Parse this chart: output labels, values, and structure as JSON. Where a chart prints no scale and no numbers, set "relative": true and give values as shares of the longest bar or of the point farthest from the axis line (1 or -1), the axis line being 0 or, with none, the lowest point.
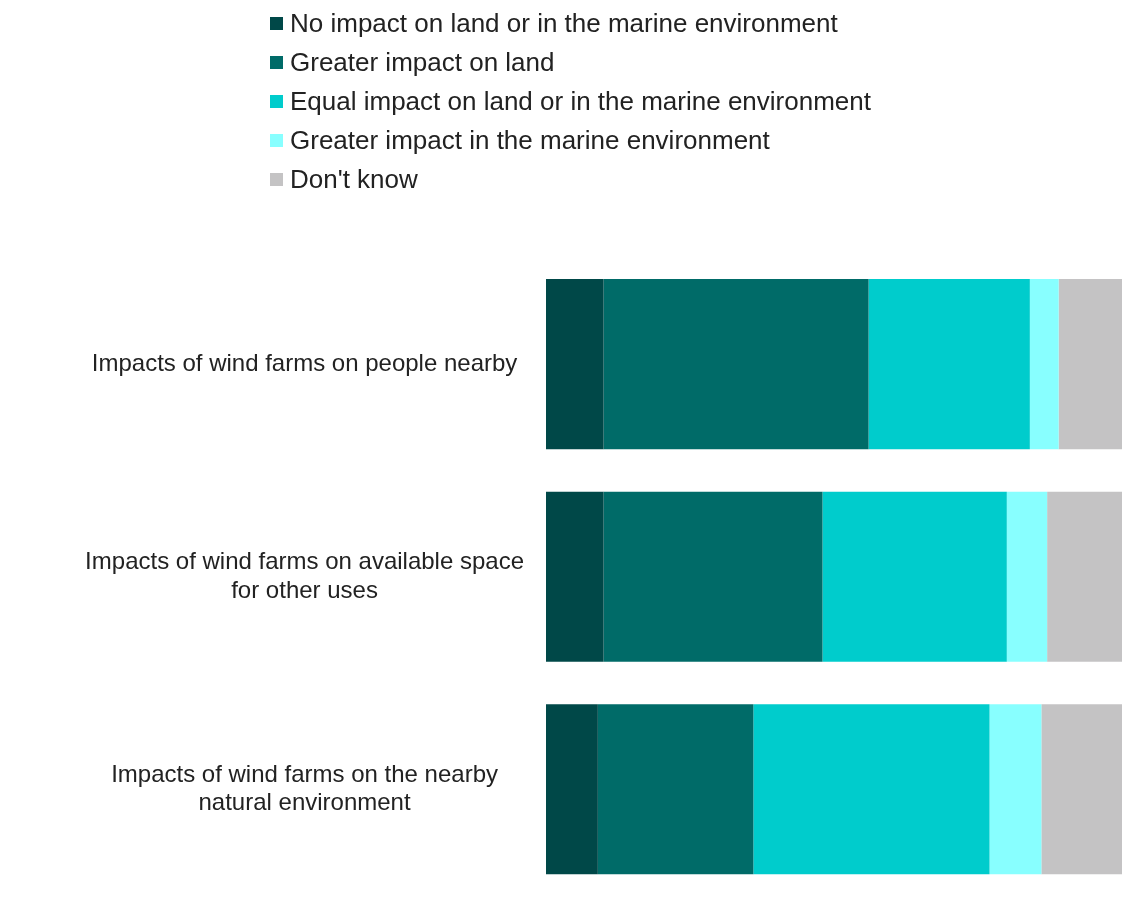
{
  "chart_data": {
    "type": "bar",
    "orientation": "horizontal",
    "stacked": true,
    "relative": true,
    "legend": "top",
    "categories": [
      "Impacts of wind farms on people nearby",
      "Impacts of wind farms on available space for other uses",
      "Impacts of wind farms on the nearby natural environment"
    ],
    "series": [
      {
        "name": "No impact on land or in the marine environment",
        "color": "#004848",
        "values": [
          0.1,
          0.1,
          0.09
        ]
      },
      {
        "name": "Greater impact on land",
        "color": "#006b68",
        "values": [
          0.46,
          0.38,
          0.27
        ]
      },
      {
        "name": "Equal impact on land or in the marine environment",
        "color": "#00cccc",
        "values": [
          0.28,
          0.32,
          0.41
        ]
      },
      {
        "name": "Greater impact in the marine environment",
        "color": "#88ffff",
        "values": [
          0.05,
          0.07,
          0.09
        ]
      },
      {
        "name": "Don't know",
        "color": "#c4c3c4",
        "values": [
          0.11,
          0.13,
          0.14
        ]
      }
    ]
  }
}
